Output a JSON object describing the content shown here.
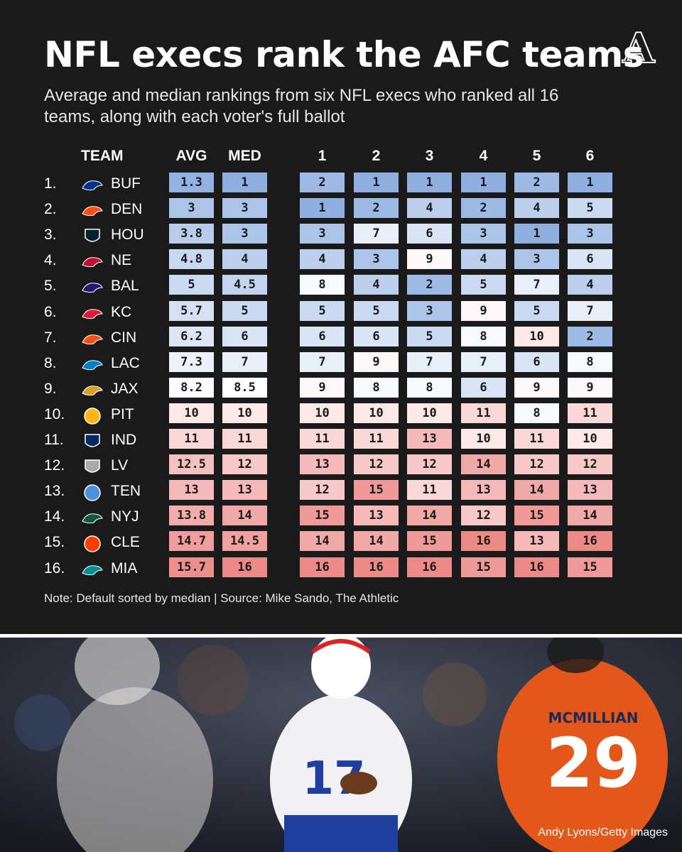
{
  "title": "NFL execs rank the AFC teams",
  "subtitle": "Average and median rankings from six NFL execs who ranked all 16 teams, along with each voter's full ballot",
  "logo_letter": "A",
  "note": "Note: Default sorted by median | Source: Mike Sando, The Athletic",
  "photo_credit": "Andy Lyons/Getty Images",
  "colors": {
    "background": "#1a1a1a",
    "low_rank": "#8eafe0",
    "mid_rank": "#ffffff",
    "high_rank": "#ec8a88"
  },
  "chart_data": {
    "type": "table",
    "columns": [
      "TEAM",
      "AVG",
      "MED",
      "1",
      "2",
      "3",
      "4",
      "5",
      "6"
    ],
    "rows": [
      {
        "rank": "1.",
        "team": "BUF",
        "avg": "1.3",
        "med": "1",
        "votes": [
          "2",
          "1",
          "1",
          "1",
          "2",
          "1"
        ]
      },
      {
        "rank": "2.",
        "team": "DEN",
        "avg": "3",
        "med": "3",
        "votes": [
          "1",
          "2",
          "4",
          "2",
          "4",
          "5"
        ]
      },
      {
        "rank": "3.",
        "team": "HOU",
        "avg": "3.8",
        "med": "3",
        "votes": [
          "3",
          "7",
          "6",
          "3",
          "1",
          "3"
        ]
      },
      {
        "rank": "4.",
        "team": "NE",
        "avg": "4.8",
        "med": "4",
        "votes": [
          "4",
          "3",
          "9",
          "4",
          "3",
          "6"
        ]
      },
      {
        "rank": "5.",
        "team": "BAL",
        "avg": "5",
        "med": "4.5",
        "votes": [
          "8",
          "4",
          "2",
          "5",
          "7",
          "4"
        ]
      },
      {
        "rank": "6.",
        "team": "KC",
        "avg": "5.7",
        "med": "5",
        "votes": [
          "5",
          "5",
          "3",
          "9",
          "5",
          "7"
        ]
      },
      {
        "rank": "7.",
        "team": "CIN",
        "avg": "6.2",
        "med": "6",
        "votes": [
          "6",
          "6",
          "5",
          "8",
          "10",
          "2"
        ]
      },
      {
        "rank": "8.",
        "team": "LAC",
        "avg": "7.3",
        "med": "7",
        "votes": [
          "7",
          "9",
          "7",
          "7",
          "6",
          "8"
        ]
      },
      {
        "rank": "9.",
        "team": "JAX",
        "avg": "8.2",
        "med": "8.5",
        "votes": [
          "9",
          "8",
          "8",
          "6",
          "9",
          "9"
        ]
      },
      {
        "rank": "10.",
        "team": "PIT",
        "avg": "10",
        "med": "10",
        "votes": [
          "10",
          "10",
          "10",
          "11",
          "8",
          "11"
        ]
      },
      {
        "rank": "11.",
        "team": "IND",
        "avg": "11",
        "med": "11",
        "votes": [
          "11",
          "11",
          "13",
          "10",
          "11",
          "10"
        ]
      },
      {
        "rank": "12.",
        "team": "LV",
        "avg": "12.5",
        "med": "12",
        "votes": [
          "13",
          "12",
          "12",
          "14",
          "12",
          "12"
        ]
      },
      {
        "rank": "13.",
        "team": "TEN",
        "avg": "13",
        "med": "13",
        "votes": [
          "12",
          "15",
          "11",
          "13",
          "14",
          "13"
        ]
      },
      {
        "rank": "14.",
        "team": "NYJ",
        "avg": "13.8",
        "med": "14",
        "votes": [
          "15",
          "13",
          "14",
          "12",
          "15",
          "14"
        ]
      },
      {
        "rank": "15.",
        "team": "CLE",
        "avg": "14.7",
        "med": "14.5",
        "votes": [
          "14",
          "14",
          "15",
          "16",
          "13",
          "16"
        ]
      },
      {
        "rank": "16.",
        "team": "MIA",
        "avg": "15.7",
        "med": "16",
        "votes": [
          "16",
          "16",
          "16",
          "15",
          "16",
          "15"
        ]
      }
    ],
    "color_scale": {
      "min": 1,
      "mid": 8.5,
      "max": 16
    }
  },
  "team_logo_colors": {
    "BUF": "#00338d",
    "DEN": "#fb4f14",
    "HOU": "#03202f",
    "NE": "#c60c30",
    "BAL": "#241773",
    "KC": "#e31837",
    "CIN": "#fb4f14",
    "LAC": "#0080c6",
    "JAX": "#d7a22a",
    "PIT": "#ffb612",
    "IND": "#002c5f",
    "LV": "#a5acaf",
    "TEN": "#4b92db",
    "NYJ": "#125740",
    "CLE": "#ff3c00",
    "MIA": "#008e97"
  }
}
